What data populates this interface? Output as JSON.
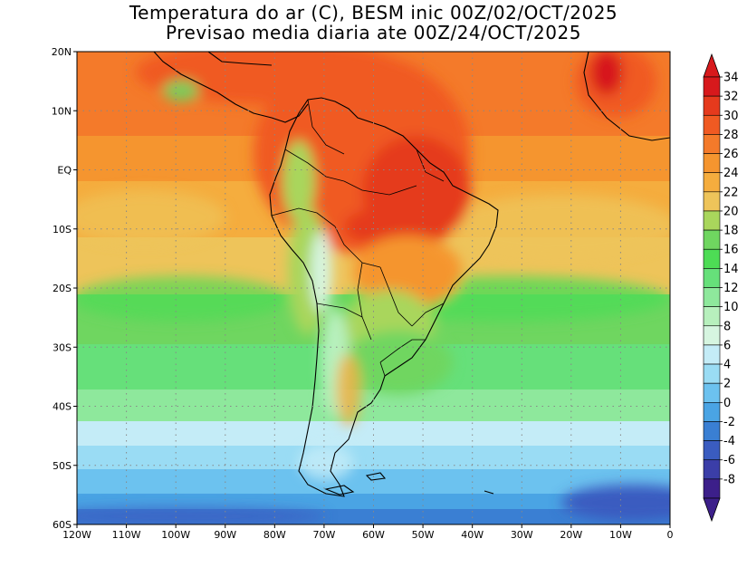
{
  "title_line1": "Temperatura do ar (C), BESM inic 00Z/02/OCT/2025",
  "title_line2": "Previsao media diaria ate 00Z/24/OCT/2025",
  "map": {
    "lon_range": [
      -120,
      0
    ],
    "lat_range": [
      -60,
      20
    ],
    "lon_ticks": [
      "120W",
      "110W",
      "100W",
      "90W",
      "80W",
      "70W",
      "60W",
      "50W",
      "40W",
      "30W",
      "20W",
      "10W",
      "0"
    ],
    "lat_ticks": [
      "20N",
      "10N",
      "EQ",
      "10S",
      "20S",
      "30S",
      "40S",
      "50S",
      "60S"
    ],
    "grid": "dotted"
  },
  "colorbar": {
    "labels": [
      "34",
      "32",
      "30",
      "28",
      "26",
      "24",
      "22",
      "20",
      "18",
      "16",
      "14",
      "12",
      "10",
      "8",
      "6",
      "4",
      "2",
      "0",
      "-2",
      "-4",
      "-6",
      "-8"
    ],
    "colors": [
      "#d7191c",
      "#e53a1d",
      "#f05a22",
      "#f47a2a",
      "#f5952f",
      "#f5ad3e",
      "#eec45a",
      "#a9d65c",
      "#6fd660",
      "#4ddc55",
      "#66e07a",
      "#8ee89c",
      "#b7f0bd",
      "#d6f5e0",
      "#c4ecf7",
      "#9adcf4",
      "#6cc2ef",
      "#4aa4e4",
      "#3a7fd3",
      "#3a5cc0",
      "#3b3ea8",
      "#3c1f8a"
    ]
  }
}
